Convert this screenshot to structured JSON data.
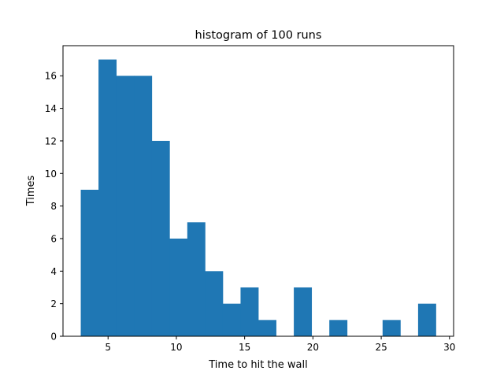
{
  "chart_data": {
    "type": "bar",
    "title": "histogram of 100 runs",
    "xlabel": "Time to hit the wall",
    "ylabel": "Times",
    "bin_start": 3,
    "bin_width": 1.3,
    "values": [
      9,
      17,
      16,
      16,
      12,
      6,
      7,
      4,
      2,
      3,
      1,
      0,
      3,
      0,
      1,
      0,
      0,
      1,
      0,
      2
    ],
    "xlim": [
      1.7,
      30.3
    ],
    "ylim": [
      0,
      17.85
    ],
    "xticks": [
      5,
      10,
      15,
      20,
      25,
      30
    ],
    "yticks": [
      0,
      2,
      4,
      6,
      8,
      10,
      12,
      14,
      16
    ],
    "grid": false,
    "bar_color": "#1f77b4"
  }
}
